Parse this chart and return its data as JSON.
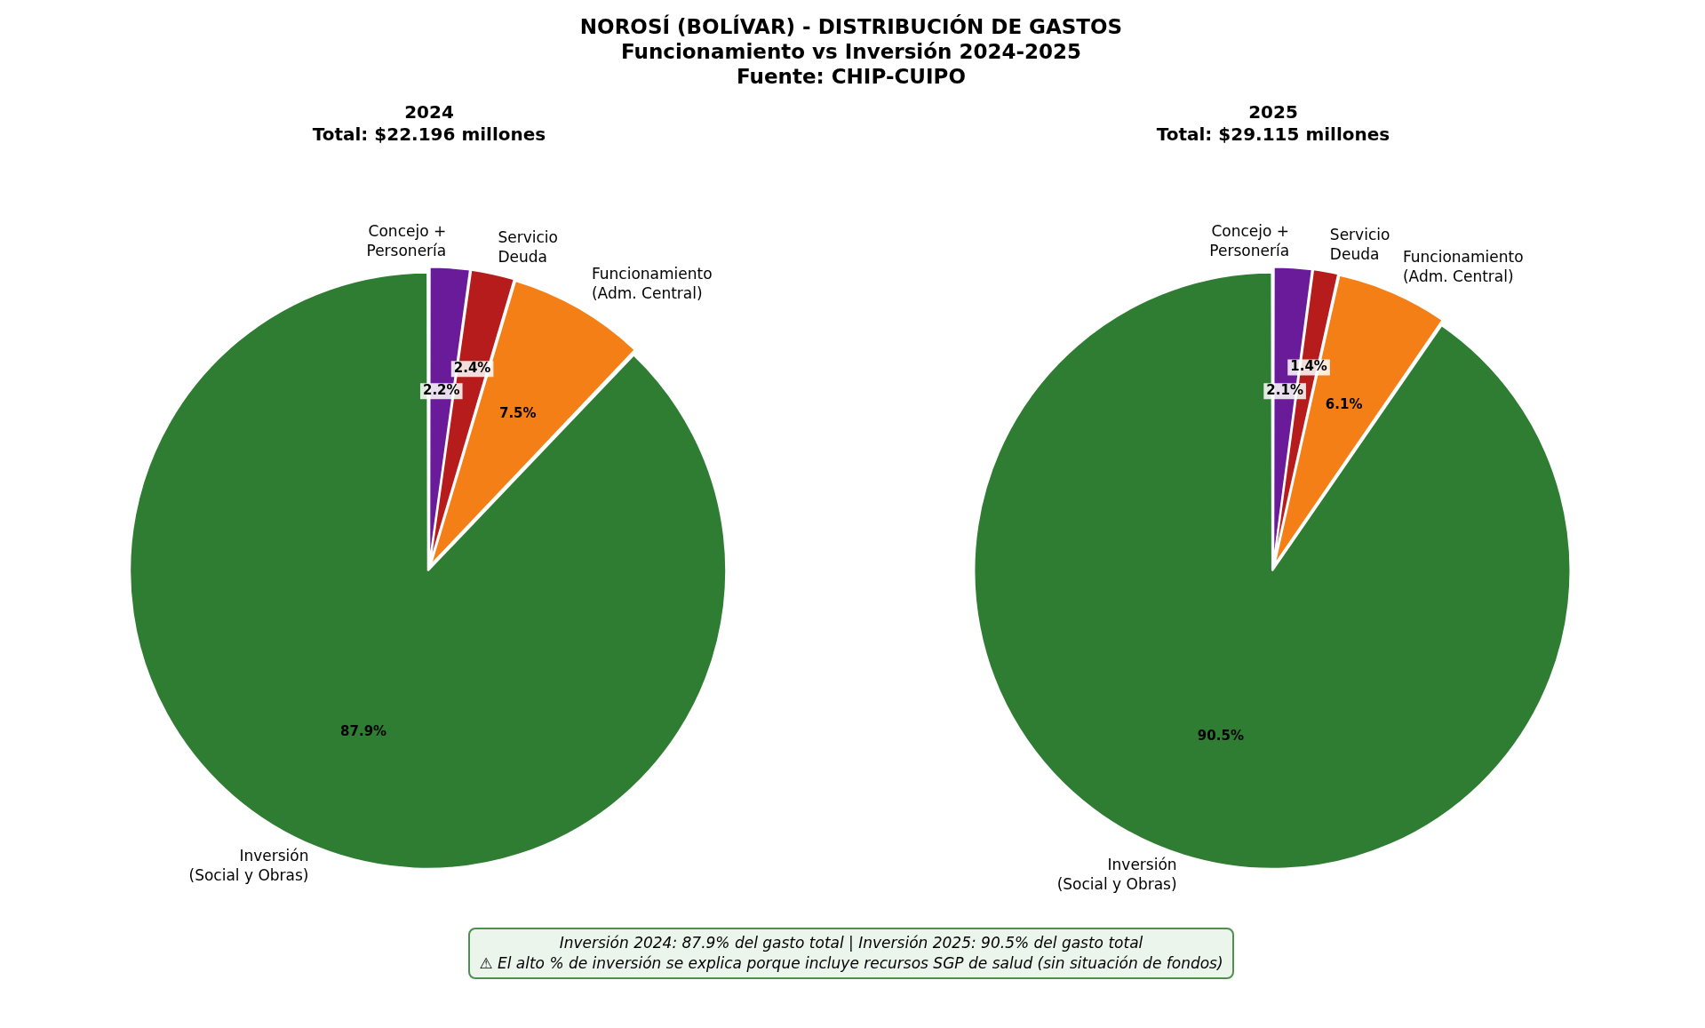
{
  "chart_data": [
    {
      "type": "other",
      "title": "NOROSÍ (BOLÍVAR) - DISTRIBUCIÓN DE GASTOS\nFuncionamiento vs Inversión 2024-2025\nFuente: CHIP-CUIPO"
    },
    {
      "type": "pie",
      "title": "2024\nTotal: $22.196 millones",
      "categories": [
        "Concejo +\nPersonería",
        "Servicio\nDeuda",
        "Funcionamiento\n(Adm. Central)",
        "Inversión\n(Social y Obras)"
      ],
      "values": [
        2.2,
        2.4,
        7.5,
        87.9
      ],
      "value_labels": [
        "2.2%",
        "2.4%",
        "7.5%",
        "87.9%"
      ],
      "colors": [
        "#6a1b9a",
        "#b71c1c",
        "#f57f17",
        "#2e7d32"
      ]
    },
    {
      "type": "pie",
      "title": "2025\nTotal: $29.115 millones",
      "categories": [
        "Concejo +\nPersonería",
        "Servicio\nDeuda",
        "Funcionamiento\n(Adm. Central)",
        "Inversión\n(Social y Obras)"
      ],
      "values": [
        2.1,
        1.4,
        6.1,
        90.5
      ],
      "value_labels": [
        "2.1%",
        "1.4%",
        "6.1%",
        "90.5%"
      ],
      "colors": [
        "#6a1b9a",
        "#b71c1c",
        "#f57f17",
        "#2e7d32"
      ]
    },
    {
      "type": "other",
      "annotations": [
        "Inversión 2024: 87.9% del gasto total | Inversión 2025: 90.5% del gasto total",
        "⚠ El alto % de inversión se explica porque incluye recursos SGP de salud (sin situación de fondos)"
      ]
    }
  ]
}
